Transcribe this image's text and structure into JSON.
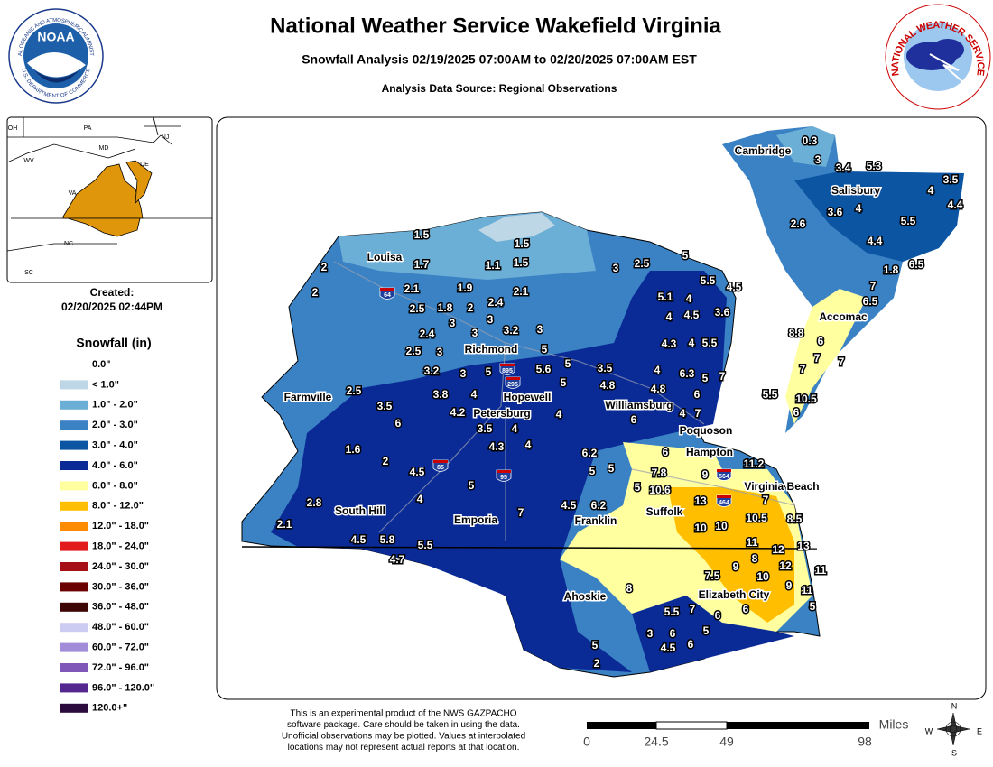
{
  "header": {
    "title": "National Weather Service Wakefield Virginia",
    "subtitle": "Snowfall Analysis 02/19/2025 07:00AM to 02/20/2025 07:00AM EST",
    "source": "Analysis Data Source: Regional Observations"
  },
  "logos": {
    "noaa": "NOAA",
    "noaa_ring": "NATIONAL OCEANIC AND ATMOSPHERIC ADMINISTRATION",
    "noaa_ring_bottom": "U.S. DEPARTMENT OF COMMERCE",
    "nws_ring": "NATIONAL WEATHER SERVICE"
  },
  "inset": {
    "states": [
      "OH",
      "PA",
      "NJ",
      "MD",
      "WV",
      "DE",
      "VA",
      "NC",
      "SC"
    ]
  },
  "created": {
    "label": "Created:",
    "timestamp": "02/20/2025 02:44PM"
  },
  "legend": {
    "title": "Snowfall (in)",
    "items": [
      {
        "label": "0.0\"",
        "color": "#ffffff"
      },
      {
        "label": "< 1.0\"",
        "color": "#bdd7e7"
      },
      {
        "label": "1.0\" - 2.0\"",
        "color": "#6baed6"
      },
      {
        "label": "2.0\" - 3.0\"",
        "color": "#3a82c4"
      },
      {
        "label": "3.0\" - 4.0\"",
        "color": "#0b55a3"
      },
      {
        "label": "4.0\" - 6.0\"",
        "color": "#0a2b96"
      },
      {
        "label": "6.0\" - 8.0\"",
        "color": "#ffffa0"
      },
      {
        "label": "8.0\" - 12.0\"",
        "color": "#ffbf00"
      },
      {
        "label": "12.0\" - 18.0\"",
        "color": "#ff8c00"
      },
      {
        "label": "18.0\" - 24.0\"",
        "color": "#e31a1c"
      },
      {
        "label": "24.0\" - 30.0\"",
        "color": "#a50f15"
      },
      {
        "label": "30.0\" - 36.0\"",
        "color": "#6b0000"
      },
      {
        "label": "36.0\" - 48.0\"",
        "color": "#3d0505"
      },
      {
        "label": "48.0\" - 60.0\"",
        "color": "#ccccf2"
      },
      {
        "label": "60.0\" - 72.0\"",
        "color": "#a08cd8"
      },
      {
        "label": "72.0\" - 96.0\"",
        "color": "#7e57b8"
      },
      {
        "label": "96.0\" - 120.0\"",
        "color": "#54278f"
      },
      {
        "label": "120.0+\"",
        "color": "#2b0a3d"
      }
    ]
  },
  "map": {
    "cities": [
      "Cambridge",
      "Salisbury",
      "Louisa",
      "Richmond",
      "Accomac",
      "Farmville",
      "Hopewell",
      "Williamsburg",
      "Petersburg",
      "Poquoson",
      "Hampton",
      "Virginia Beach",
      "South Hill",
      "Emporia",
      "Franklin",
      "Suffolk",
      "Ahoskie",
      "Elizabeth City"
    ],
    "interstates": [
      "64",
      "895",
      "295",
      "85",
      "95",
      "564",
      "464"
    ],
    "observations": [
      "0.3",
      "3",
      "3.4",
      "5.3",
      "3.5",
      "4",
      "4.4",
      "3.6",
      "4",
      "2.6",
      "5.5",
      "4.4",
      "1.8",
      "6.5",
      "7",
      "6.5",
      "1.5",
      "1.5",
      "1.7",
      "1.1",
      "1.5",
      "3",
      "2.5",
      "5",
      "2",
      "2",
      "2.1",
      "1.9",
      "2.1",
      "5.5",
      "4.5",
      "2.4",
      "5.1",
      "4",
      "2.5",
      "1.8",
      "2",
      "3",
      "3",
      "3.2",
      "3",
      "4",
      "4.5",
      "3.6",
      "2.4",
      "3",
      "3",
      "2.5",
      "5",
      "4.3",
      "4",
      "5.5",
      "3.2",
      "3",
      "5",
      "5.6",
      "5",
      "3.5",
      "4",
      "6.3",
      "5",
      "7",
      "2.5",
      "3.8",
      "4",
      "5",
      "4.8",
      "4.8",
      "6",
      "3.5",
      "4.2",
      "4",
      "6",
      "4",
      "7",
      "6",
      "3.5",
      "4",
      "4.3",
      "4",
      "6.2",
      "6",
      "1.6",
      "2",
      "5",
      "5",
      "7.8",
      "9",
      "11.2",
      "4.5",
      "5",
      "10.6",
      "5",
      "13",
      "7",
      "4",
      "4.5",
      "6.2",
      "7",
      "10.5",
      "8.5",
      "2.8",
      "2.1",
      "10",
      "10",
      "4.5",
      "5.8",
      "5.5",
      "11",
      "12",
      "13",
      "4.7",
      "9",
      "8",
      "12",
      "11",
      "7.5",
      "10",
      "9",
      "11",
      "8",
      "5.5",
      "7",
      "6",
      "6",
      "5",
      "3",
      "6",
      "5",
      "6",
      "4.5",
      "5",
      "2",
      "8.8",
      "6",
      "7",
      "7",
      "7",
      "5.5",
      "10.5",
      "6"
    ]
  },
  "disclaimer": [
    "This is an experimental product of the NWS GAZPACHO",
    "software package. Care should be taken in using the data.",
    "Unofficial observations may be plotted. Values at interpolated",
    "locations may not represent actual reports at that location."
  ],
  "scale": {
    "unit": "Miles",
    "ticks": [
      "0",
      "24.5",
      "49",
      "98"
    ]
  },
  "compass": [
    "N",
    "E",
    "S",
    "W"
  ]
}
